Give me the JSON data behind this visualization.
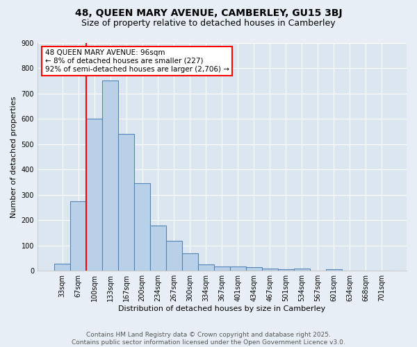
{
  "title1": "48, QUEEN MARY AVENUE, CAMBERLEY, GU15 3BJ",
  "title2": "Size of property relative to detached houses in Camberley",
  "xlabel": "Distribution of detached houses by size in Camberley",
  "ylabel": "Number of detached properties",
  "categories": [
    "33sqm",
    "67sqm",
    "100sqm",
    "133sqm",
    "167sqm",
    "200sqm",
    "234sqm",
    "267sqm",
    "300sqm",
    "334sqm",
    "367sqm",
    "401sqm",
    "434sqm",
    "467sqm",
    "501sqm",
    "534sqm",
    "567sqm",
    "601sqm",
    "634sqm",
    "668sqm",
    "701sqm"
  ],
  "values": [
    27,
    275,
    600,
    750,
    540,
    345,
    178,
    118,
    70,
    25,
    17,
    16,
    13,
    8,
    7,
    8,
    0,
    5,
    0,
    0,
    0
  ],
  "bar_color": "#b8d0e8",
  "bar_edge_color": "#5585b5",
  "red_line_index": 1.5,
  "annotation_text": "48 QUEEN MARY AVENUE: 96sqm\n← 8% of detached houses are smaller (227)\n92% of semi-detached houses are larger (2,706) →",
  "annotation_box_color": "white",
  "annotation_box_edge": "red",
  "footer": "Contains HM Land Registry data © Crown copyright and database right 2025.\nContains public sector information licensed under the Open Government Licence v3.0.",
  "ylim": [
    0,
    900
  ],
  "yticks": [
    0,
    100,
    200,
    300,
    400,
    500,
    600,
    700,
    800,
    900
  ],
  "fig_background_color": "#e8eef5",
  "plot_bg_color": "#dce6f0",
  "grid_color": "#ffffff",
  "title1_fontsize": 10,
  "title2_fontsize": 9,
  "axis_label_fontsize": 8,
  "tick_fontsize": 7,
  "footer_fontsize": 6.5,
  "annotation_fontsize": 7.5
}
